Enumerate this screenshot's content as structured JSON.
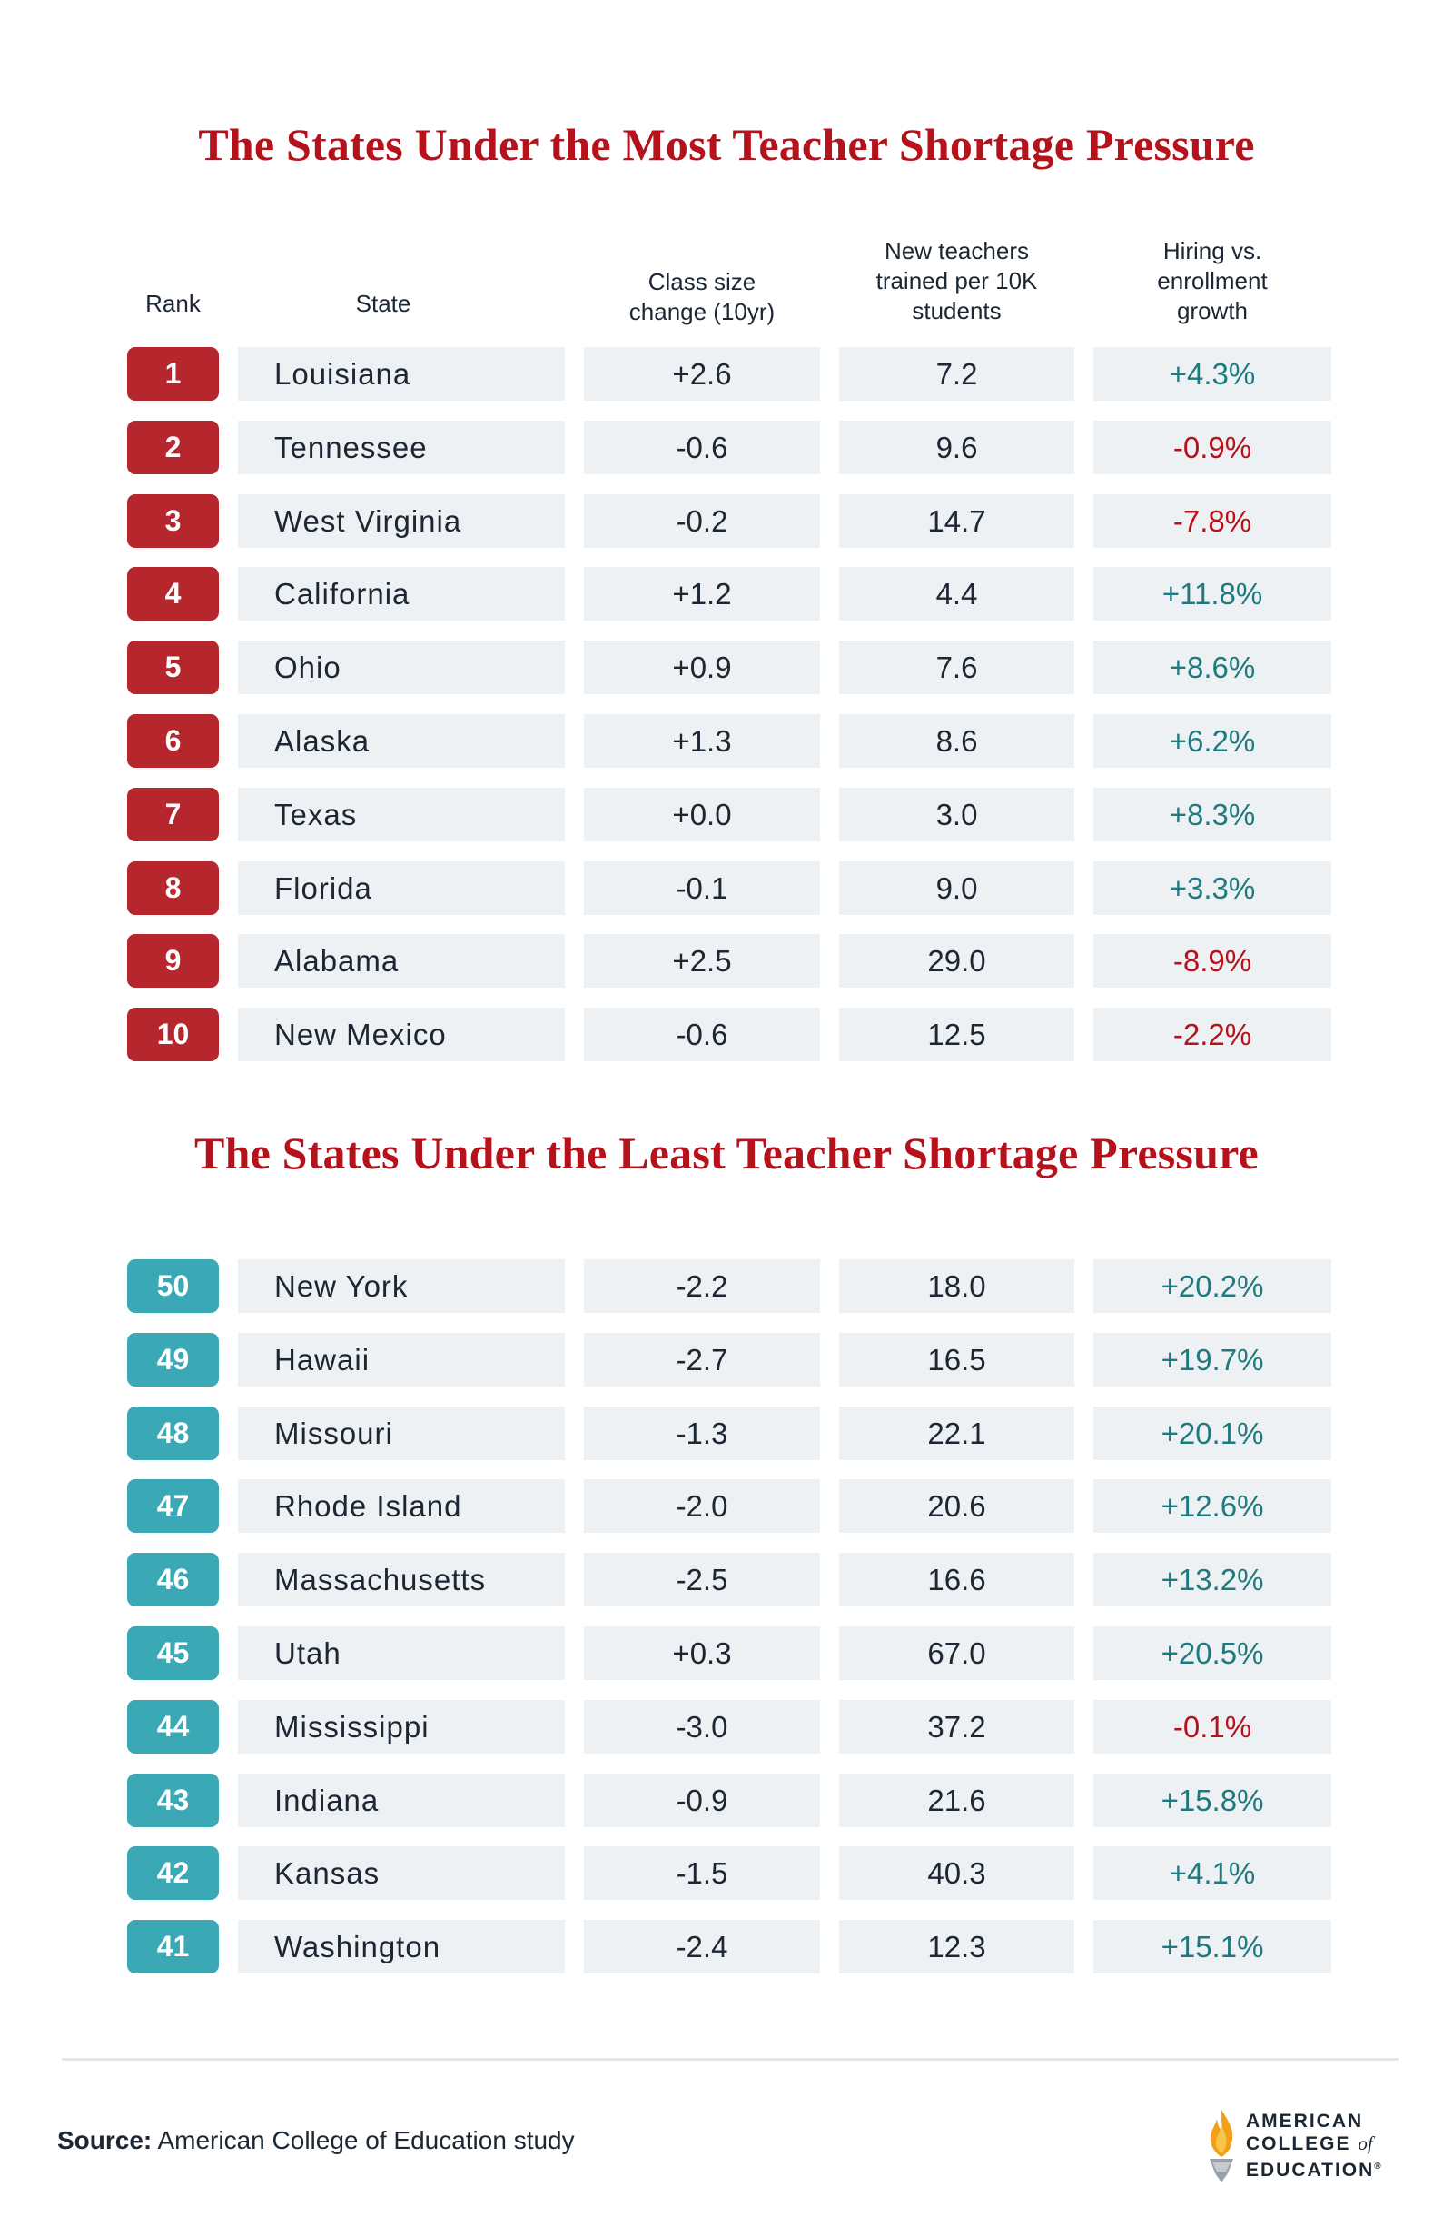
{
  "top_title": "The States Under the Most Teacher Shortage Pressure",
  "bottom_title": "The States Under the Least Teacher Shortage Pressure",
  "headers": {
    "rank": "Rank",
    "state": "State",
    "class_size": [
      "Class size",
      "change (10yr)"
    ],
    "new_teachers": [
      "New teachers",
      "trained per 10K",
      "students"
    ],
    "hiring": [
      "Hiring vs.",
      "enrollment",
      "growth"
    ]
  },
  "top_rows": [
    {
      "rank": "1",
      "state": "Louisiana",
      "class": "+2.6",
      "new": "7.2",
      "hire": "+4.3%",
      "trend": "pos"
    },
    {
      "rank": "2",
      "state": "Tennessee",
      "class": "-0.6",
      "new": "9.6",
      "hire": "-0.9%",
      "trend": "neg"
    },
    {
      "rank": "3",
      "state": "West Virginia",
      "class": "-0.2",
      "new": "14.7",
      "hire": "-7.8%",
      "trend": "neg"
    },
    {
      "rank": "4",
      "state": "California",
      "class": "+1.2",
      "new": "4.4",
      "hire": "+11.8%",
      "trend": "pos"
    },
    {
      "rank": "5",
      "state": "Ohio",
      "class": "+0.9",
      "new": "7.6",
      "hire": "+8.6%",
      "trend": "pos"
    },
    {
      "rank": "6",
      "state": "Alaska",
      "class": "+1.3",
      "new": "8.6",
      "hire": "+6.2%",
      "trend": "pos"
    },
    {
      "rank": "7",
      "state": "Texas",
      "class": "+0.0",
      "new": "3.0",
      "hire": "+8.3%",
      "trend": "pos"
    },
    {
      "rank": "8",
      "state": "Florida",
      "class": "-0.1",
      "new": "9.0",
      "hire": "+3.3%",
      "trend": "pos"
    },
    {
      "rank": "9",
      "state": "Alabama",
      "class": "+2.5",
      "new": "29.0",
      "hire": "-8.9%",
      "trend": "neg"
    },
    {
      "rank": "10",
      "state": "New Mexico",
      "class": "-0.6",
      "new": "12.5",
      "hire": "-2.2%",
      "trend": "neg"
    }
  ],
  "bottom_rows": [
    {
      "rank": "50",
      "state": "New York",
      "class": "-2.2",
      "new": "18.0",
      "hire": "+20.2%",
      "trend": "pos"
    },
    {
      "rank": "49",
      "state": "Hawaii",
      "class": "-2.7",
      "new": "16.5",
      "hire": "+19.7%",
      "trend": "pos"
    },
    {
      "rank": "48",
      "state": "Missouri",
      "class": "-1.3",
      "new": "22.1",
      "hire": "+20.1%",
      "trend": "pos"
    },
    {
      "rank": "47",
      "state": "Rhode Island",
      "class": "-2.0",
      "new": "20.6",
      "hire": "+12.6%",
      "trend": "pos"
    },
    {
      "rank": "46",
      "state": "Massachusetts",
      "class": "-2.5",
      "new": "16.6",
      "hire": "+13.2%",
      "trend": "pos"
    },
    {
      "rank": "45",
      "state": "Utah",
      "class": "+0.3",
      "new": "67.0",
      "hire": "+20.5%",
      "trend": "pos"
    },
    {
      "rank": "44",
      "state": "Mississippi",
      "class": "-3.0",
      "new": "37.2",
      "hire": "-0.1%",
      "trend": "neg"
    },
    {
      "rank": "43",
      "state": "Indiana",
      "class": "-0.9",
      "new": "21.6",
      "hire": "+15.8%",
      "trend": "pos"
    },
    {
      "rank": "42",
      "state": "Kansas",
      "class": "-1.5",
      "new": "40.3",
      "hire": "+4.1%",
      "trend": "pos"
    },
    {
      "rank": "41",
      "state": "Washington",
      "class": "-2.4",
      "new": "12.3",
      "hire": "+15.1%",
      "trend": "pos"
    }
  ],
  "colors": {
    "title": "#b5121b",
    "badge_top": "#b5262d",
    "badge_bottom": "#3aa9b5",
    "positive": "#1f7a7f",
    "negative": "#b5121b",
    "cell_bg": "#eef1f3"
  },
  "footer": {
    "source_label": "Source:",
    "source_text": "American College of Education study"
  },
  "logo": {
    "icon": "flame-torch-icon",
    "line1": "AMERICAN",
    "line2": "COLLEGE",
    "line2_suffix": "of",
    "line3": "EDUCATION",
    "mark": "®"
  }
}
